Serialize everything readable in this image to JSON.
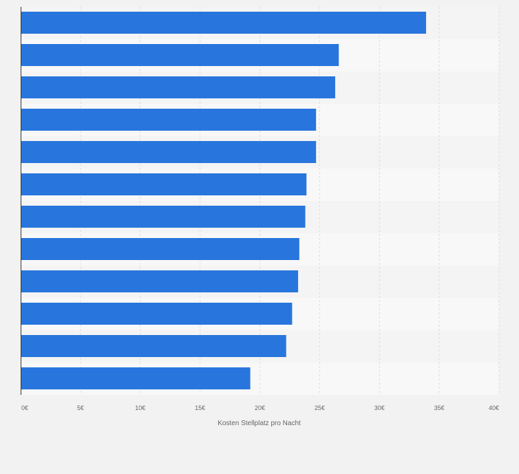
{
  "chart_data": {
    "type": "bar",
    "orientation": "horizontal",
    "title": "",
    "xlabel": "Kosten Stellplatz pro Nacht",
    "ylabel": "",
    "categories": [
      "",
      "",
      "",
      "",
      "",
      "",
      "",
      "",
      "",
      "",
      "",
      ""
    ],
    "values": [
      33.9,
      26.6,
      26.3,
      24.7,
      24.7,
      23.9,
      23.8,
      23.3,
      23.2,
      22.7,
      22.2,
      19.2
    ],
    "xlim": [
      0,
      40
    ],
    "x_ticks": [
      0,
      5,
      10,
      15,
      20,
      25,
      30,
      35,
      40
    ],
    "x_tick_labels": [
      "0€",
      "5€",
      "10€",
      "15€",
      "20€",
      "25€",
      "30€",
      "35€",
      "40€"
    ],
    "grid": true,
    "legend": "none",
    "colors": {
      "bar": "#2876dd",
      "band_even": "#f4f4f4",
      "band_odd": "#f8f8f8",
      "grid": "#dcdcdc",
      "axis": "#333333",
      "text": "#666666",
      "background": "#f2f2f2"
    }
  }
}
